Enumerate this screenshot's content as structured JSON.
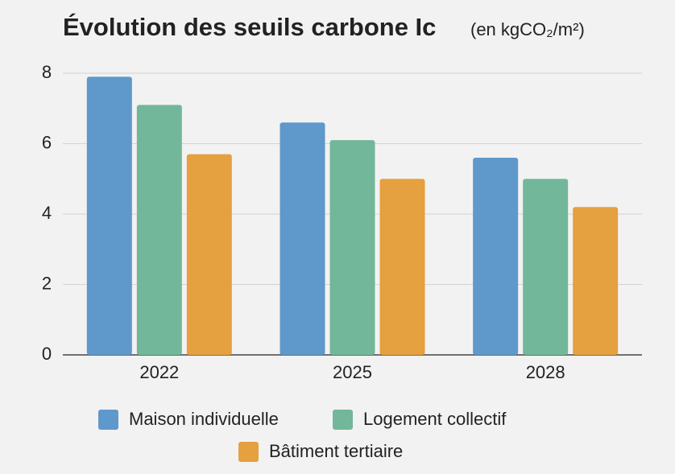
{
  "chart_data": {
    "type": "bar",
    "title": "Évolution des seuils carbone Ic",
    "subtitle": "(en kgCO₂/m²)",
    "categories": [
      "2022",
      "2025",
      "2028"
    ],
    "series": [
      {
        "name": "Maison individuelle",
        "color": "#5f98ca",
        "values": [
          7.9,
          6.6,
          5.6
        ]
      },
      {
        "name": "Logement collectif",
        "color": "#72b799",
        "values": [
          7.1,
          6.1,
          5.0
        ]
      },
      {
        "name": "Bâtiment tertiaire",
        "color": "#e5a03f",
        "values": [
          5.7,
          5.0,
          4.2
        ]
      }
    ],
    "ylim": [
      0,
      8
    ],
    "yticks": [
      0,
      2,
      4,
      6,
      8
    ],
    "grid": true
  }
}
